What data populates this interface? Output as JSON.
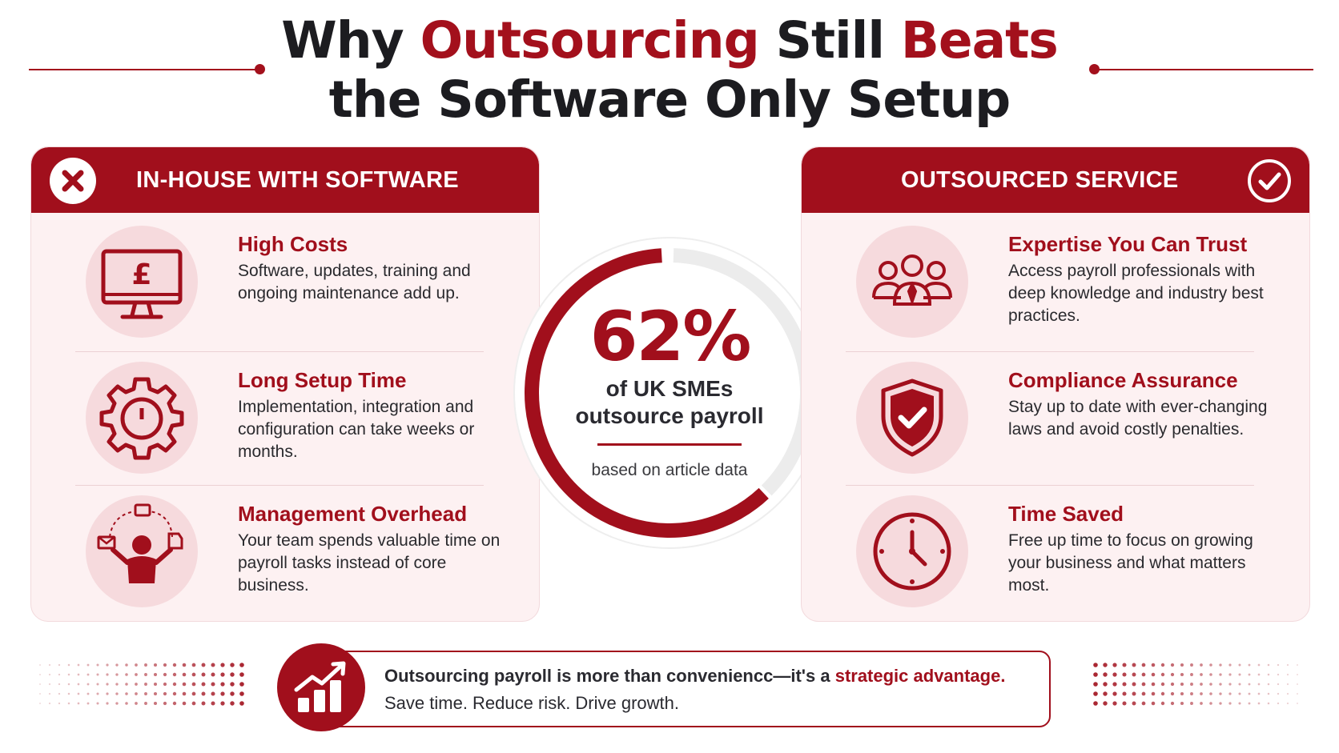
{
  "title": {
    "line1_pre": "Why ",
    "line1_accent1": "Outsourcing",
    "line1_mid": " Still ",
    "line1_accent2": "Beats",
    "line2": "the Software Only Setup"
  },
  "left_panel": {
    "title": "IN-HOUSE WITH SOFTWARE",
    "header_icon": "x-circle-icon",
    "items": [
      {
        "icon": "monitor-pound-icon",
        "title": "High Costs",
        "desc": "Software, updates, training and ongoing maintenance add up."
      },
      {
        "icon": "gear-clock-icon",
        "title": "Long Setup Time",
        "desc": "Implementation, integration and configuration can take weeks or months."
      },
      {
        "icon": "juggling-person-icon",
        "title": "Management Overhead",
        "desc": "Your team spends valuable time on payroll tasks instead of core business."
      }
    ]
  },
  "right_panel": {
    "title": "OUTSOURCED SERVICE",
    "header_icon": "check-circle-icon",
    "items": [
      {
        "icon": "team-icon",
        "title": "Expertise You Can Trust",
        "desc": "Access payroll professionals with deep knowledge and industry best practices."
      },
      {
        "icon": "shield-check-icon",
        "title": "Compliance Assurance",
        "desc": "Stay up to date with ever-changing laws and avoid costly penalties."
      },
      {
        "icon": "clock-icon",
        "title": "Time Saved",
        "desc": "Free up time to focus on growing your business and what matters most."
      }
    ]
  },
  "stat": {
    "value": "62%",
    "percent": 62,
    "label": "of UK SMEs outsource payroll",
    "note": "based on article data"
  },
  "banner": {
    "icon": "growth-chart-icon",
    "line1_pre": "Outsourcing payroll is more than conveniencc—it's a ",
    "line1_accent": "strategic advantage.",
    "line2": "Save time. Reduce risk. Drive growth."
  },
  "colors": {
    "accent": "#a10f1c",
    "panel_bg": "#fdf1f2",
    "icon_bg": "#f6dadd",
    "ring_track": "#ececec"
  }
}
